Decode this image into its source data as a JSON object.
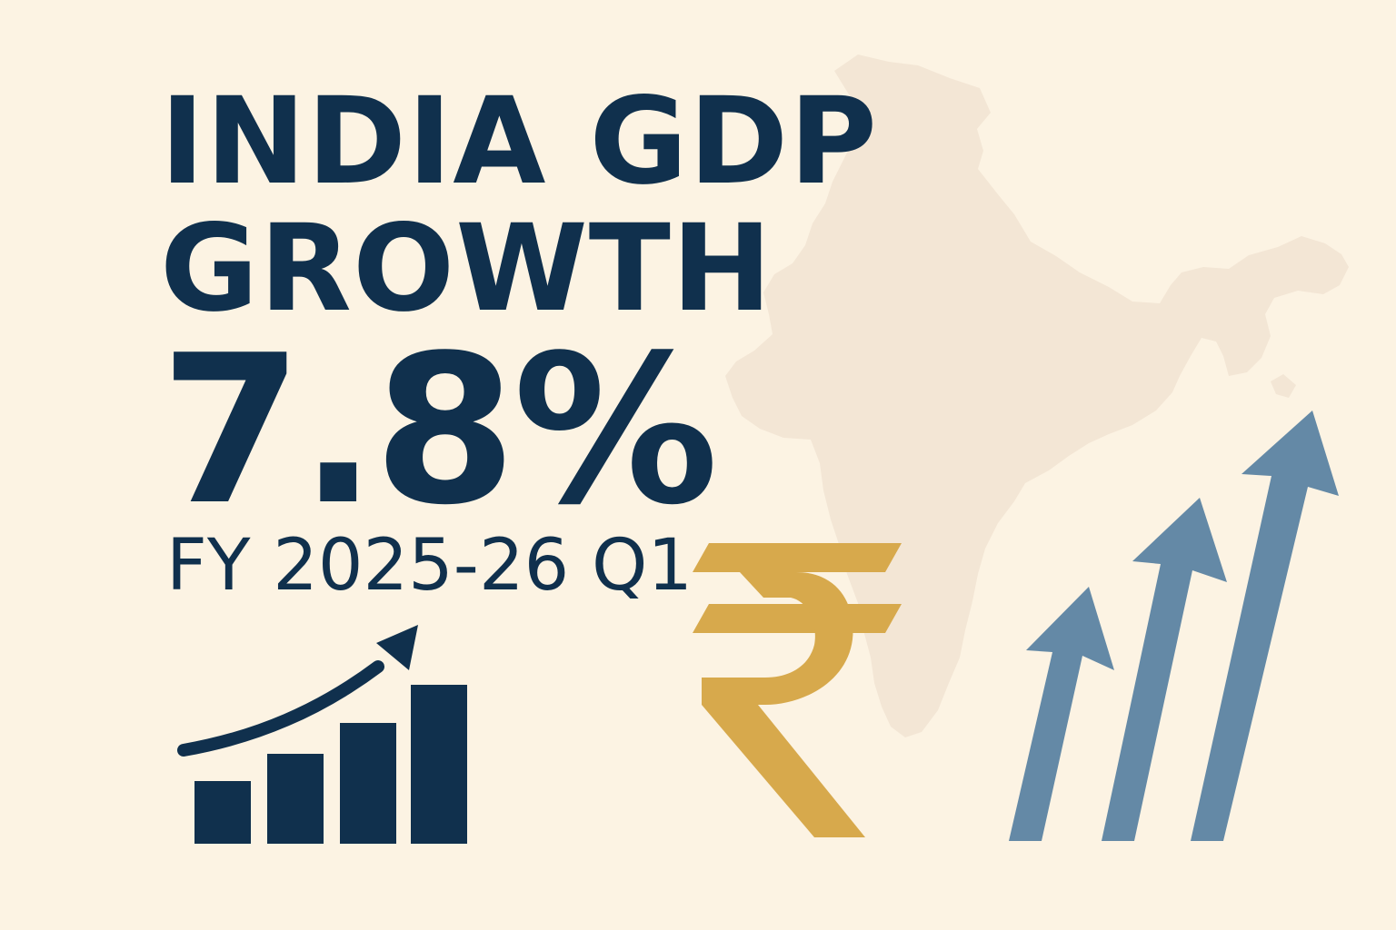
{
  "headline": {
    "line1": "INDIA GDP",
    "line2": "GROWTH"
  },
  "growth": {
    "value": "7.8%"
  },
  "period": {
    "label": "FY 2025-26 Q1"
  },
  "icons": {
    "map": "india-map-icon",
    "chart": "bar-chart-trend-icon",
    "currency": "rupee-icon",
    "growth_arrows": "rising-arrows-icon"
  },
  "colors": {
    "background": "#fcf3e3",
    "map": "#f3e6d5",
    "navy": "#10304d",
    "gold": "#d7a94c",
    "steel_blue": "#6489a6"
  }
}
